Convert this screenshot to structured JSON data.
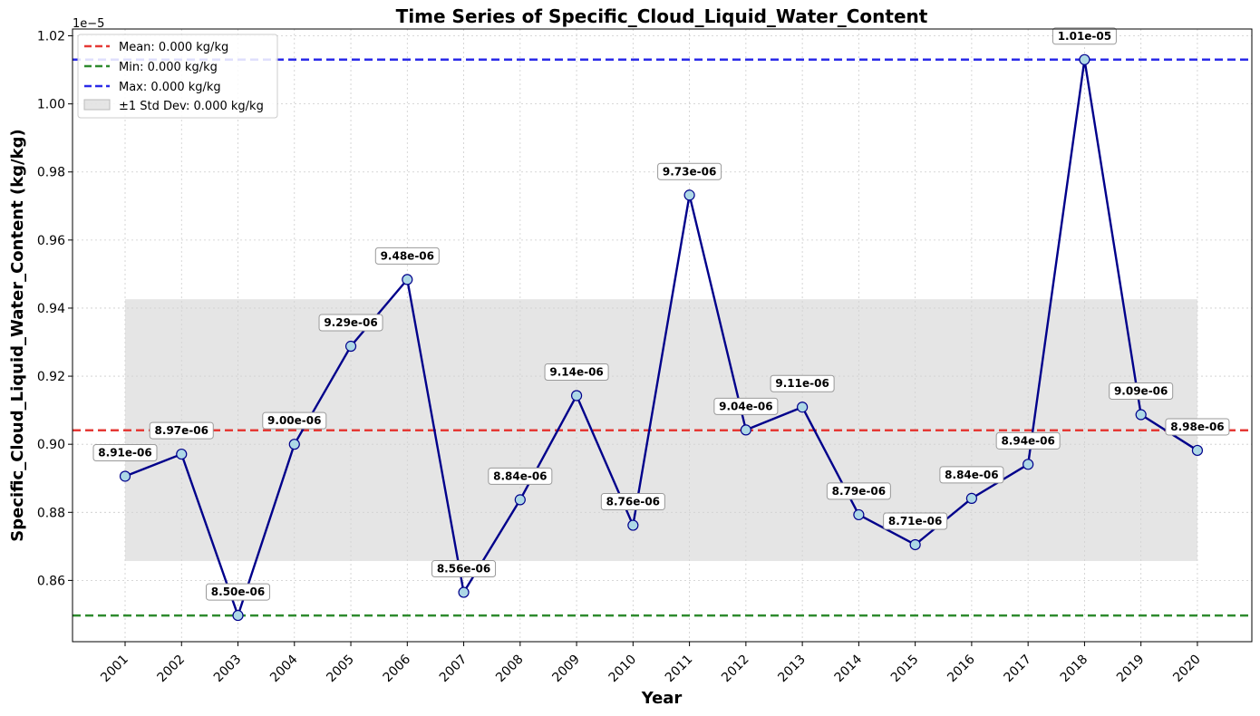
{
  "chart_data": {
    "type": "line",
    "title": "Time Series of Specific_Cloud_Liquid_Water_Content",
    "xlabel": "Year",
    "ylabel": "Specific_Cloud_Liquid_Water_Content (kg/kg)",
    "y_offset_text": "1e−5",
    "ylim": [
      0.842,
      1.022
    ],
    "y_ticks": [
      0.86,
      0.88,
      0.9,
      0.92,
      0.94,
      0.96,
      0.98,
      1.0,
      1.02
    ],
    "y_tick_labels": [
      "0.86",
      "0.88",
      "0.90",
      "0.92",
      "0.94",
      "0.96",
      "0.98",
      "1.00",
      "1.02"
    ],
    "grid": true,
    "legend_position": "top-left",
    "x": [
      "2001",
      "2002",
      "2003",
      "2004",
      "2005",
      "2006",
      "2007",
      "2008",
      "2009",
      "2010",
      "2011",
      "2012",
      "2013",
      "2014",
      "2015",
      "2016",
      "2017",
      "2018",
      "2019",
      "2020"
    ],
    "series": [
      {
        "values": [
          0.8906,
          0.8971,
          0.8497,
          0.9,
          0.9288,
          0.9484,
          0.8565,
          0.8837,
          0.9143,
          0.8762,
          0.9732,
          0.9042,
          0.9109,
          0.8793,
          0.8705,
          0.8841,
          0.8941,
          1.013,
          0.9087,
          0.8982
        ],
        "point_labels": [
          "8.91e-06",
          "8.97e-06",
          "8.50e-06",
          "9.00e-06",
          "9.29e-06",
          "9.48e-06",
          "8.56e-06",
          "8.84e-06",
          "9.14e-06",
          "8.76e-06",
          "9.73e-06",
          "9.04e-06",
          "9.11e-06",
          "8.79e-06",
          "8.71e-06",
          "8.84e-06",
          "8.94e-06",
          "1.01e-05",
          "9.09e-06",
          "8.98e-06"
        ],
        "color": "#00008b",
        "marker_color": "#add8e6"
      }
    ],
    "reference_lines": [
      {
        "label": "Mean: 0.000 kg/kg",
        "value": 0.9041,
        "color": "#e53935"
      },
      {
        "label": "Min: 0.000 kg/kg",
        "value": 0.8497,
        "color": "#2e8b2e"
      },
      {
        "label": "Max: 0.000 kg/kg",
        "value": 1.013,
        "color": "#2a2ae8"
      }
    ],
    "std_band": {
      "label": "±1 Std Dev: 0.000 kg/kg",
      "low": 0.8657,
      "high": 0.9426,
      "color": "#d3d3d3"
    }
  }
}
